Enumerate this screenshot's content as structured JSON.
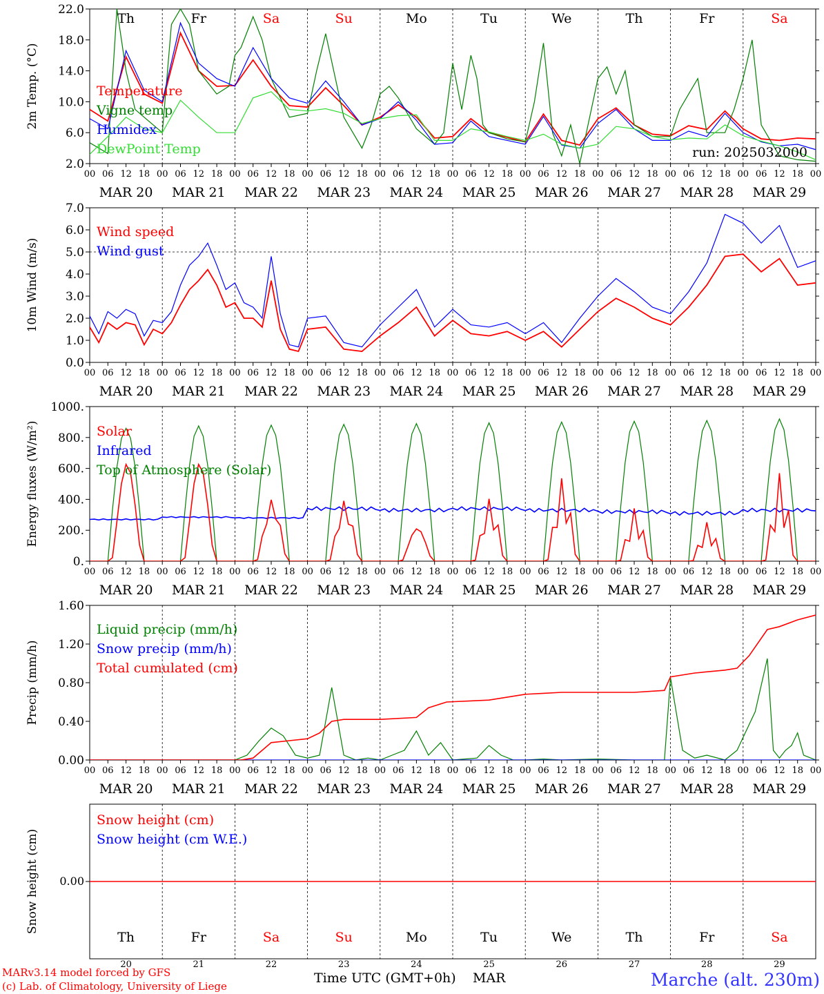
{
  "run_label": "run: 2025032000",
  "model_credit": "MARv3.14 model forced by GFS",
  "lab_credit": "(c) Lab. of Climatology, University of Liege",
  "xaxis_label": "Time UTC (GMT+0h)",
  "month_label": "MAR",
  "site_label": "Marche (alt. 230m)",
  "days": [
    {
      "abbr": "Th",
      "weekend": false,
      "date": "MAR 20",
      "num": "20"
    },
    {
      "abbr": "Fr",
      "weekend": false,
      "date": "MAR 21",
      "num": "21"
    },
    {
      "abbr": "Sa",
      "weekend": true,
      "date": "MAR 22",
      "num": "22"
    },
    {
      "abbr": "Su",
      "weekend": true,
      "date": "MAR 23",
      "num": "23"
    },
    {
      "abbr": "Mo",
      "weekend": false,
      "date": "MAR 24",
      "num": "24"
    },
    {
      "abbr": "Tu",
      "weekend": false,
      "date": "MAR 25",
      "num": "25"
    },
    {
      "abbr": "We",
      "weekend": false,
      "date": "MAR 26",
      "num": "26"
    },
    {
      "abbr": "Th",
      "weekend": false,
      "date": "MAR 27",
      "num": "27"
    },
    {
      "abbr": "Fr",
      "weekend": false,
      "date": "MAR 28",
      "num": "28"
    },
    {
      "abbr": "Sa",
      "weekend": true,
      "date": "MAR 29",
      "num": "29"
    }
  ],
  "hour_ticks": [
    "00",
    "06",
    "12",
    "18"
  ],
  "colors": {
    "red": "#ff0000",
    "green": "#008000",
    "blue": "#0000ff",
    "lightgreen": "#33dd33",
    "weekend": "#ff0000",
    "site": "#3333ff"
  },
  "chart_data": [
    {
      "id": "temperature",
      "type": "line",
      "ylabel": "2m Temp. (°C)",
      "ylim": [
        2,
        22
      ],
      "yticks": [
        "2.0",
        "6.0",
        "10.0",
        "14.0",
        "18.0",
        "22.0"
      ],
      "ytick_values": [
        2,
        6,
        10,
        14,
        18,
        22
      ],
      "x_unit": "hours since MAR 20 00 UTC",
      "series": [
        {
          "name": "Temperature",
          "color": "red",
          "width": 1.8,
          "x": [
            0,
            6,
            12,
            18,
            24,
            30,
            36,
            42,
            48,
            54,
            60,
            66,
            72,
            78,
            84,
            90,
            96,
            102,
            108,
            114,
            120,
            126,
            132,
            138,
            144,
            150,
            156,
            162,
            168,
            174,
            180,
            186,
            192,
            198,
            204,
            210,
            216,
            222,
            228,
            234,
            240
          ],
          "y": [
            9,
            7.5,
            15.8,
            11,
            9.8,
            18.9,
            14,
            12,
            12.1,
            15.4,
            12,
            9.5,
            9.3,
            11.8,
            9.5,
            7,
            8,
            9.6,
            8,
            5.3,
            5.5,
            7.8,
            6,
            5.4,
            4.8,
            8.4,
            5,
            4.4,
            7.8,
            9.2,
            7,
            5.8,
            5.6,
            6.9,
            6.4,
            8.8,
            6.5,
            5.2,
            5,
            5.3,
            5.2
          ]
        },
        {
          "name": "Vigne temp",
          "color": "green",
          "width": 1.2,
          "x": [
            0,
            6,
            9,
            12,
            15,
            18,
            24,
            27,
            30,
            33,
            36,
            42,
            46,
            48,
            50,
            52,
            54,
            57,
            60,
            66,
            72,
            75,
            78,
            84,
            90,
            93,
            96,
            99,
            102,
            108,
            114,
            117,
            120,
            123,
            126,
            128,
            130,
            132,
            138,
            144,
            147,
            150,
            153,
            156,
            159,
            162,
            168,
            171,
            174,
            177,
            180,
            186,
            192,
            195,
            198,
            201,
            204,
            210,
            213,
            216,
            219,
            222,
            228,
            234,
            240
          ],
          "y": [
            4.7,
            3.3,
            22,
            14,
            9,
            8,
            6,
            20,
            22,
            20,
            14,
            11,
            12,
            16,
            17,
            19,
            21,
            18,
            13,
            8,
            8.5,
            14,
            18.8,
            8,
            4,
            7,
            11,
            12,
            10.5,
            6.5,
            4.5,
            6,
            15,
            9,
            16,
            13,
            7,
            6,
            5.2,
            4.8,
            10,
            17.6,
            6,
            3,
            7,
            2,
            13,
            14.5,
            11,
            14,
            7,
            5.5,
            5.5,
            9,
            11,
            13,
            6,
            6,
            9,
            13,
            18,
            7,
            3,
            2.5,
            2.3
          ]
        },
        {
          "name": "Humidex",
          "color": "blue",
          "width": 1.2,
          "x": [
            0,
            6,
            12,
            18,
            24,
            30,
            36,
            42,
            48,
            54,
            60,
            66,
            72,
            78,
            84,
            90,
            96,
            102,
            108,
            114,
            120,
            126,
            132,
            138,
            144,
            150,
            156,
            162,
            168,
            174,
            180,
            186,
            192,
            198,
            204,
            210,
            216,
            222,
            228,
            234,
            240
          ],
          "y": [
            7.8,
            6.5,
            16.6,
            11.5,
            10,
            20.2,
            15,
            13,
            12,
            17,
            13,
            10.5,
            9.8,
            12.7,
            10,
            7,
            7.8,
            10,
            7.6,
            4.5,
            4.7,
            7.5,
            5.5,
            5,
            4.5,
            8.1,
            4.4,
            4,
            7.2,
            9,
            6.5,
            5,
            5,
            6.2,
            5.5,
            8.5,
            6,
            4.8,
            4.3,
            4.5,
            3.8
          ]
        },
        {
          "name": "DewPoint Temp",
          "color": "lightgreen",
          "width": 1.2,
          "x": [
            0,
            6,
            12,
            18,
            24,
            30,
            36,
            42,
            48,
            54,
            60,
            66,
            72,
            78,
            84,
            90,
            96,
            102,
            108,
            114,
            120,
            126,
            132,
            138,
            144,
            150,
            156,
            162,
            168,
            174,
            180,
            186,
            192,
            198,
            204,
            210,
            216,
            222,
            228,
            234,
            240
          ],
          "y": [
            3.2,
            5.5,
            8,
            6.5,
            6,
            10.2,
            8,
            6,
            6,
            10.5,
            11.3,
            9,
            8.8,
            9.1,
            8.5,
            7.2,
            7.8,
            8.2,
            8.3,
            5,
            5,
            6.5,
            6.1,
            5.5,
            5,
            5.8,
            4.5,
            4,
            4.5,
            6.8,
            6.5,
            5.5,
            5.1,
            5.3,
            5.2,
            7,
            5.6,
            4.9,
            4.3,
            3.5,
            2.5
          ]
        }
      ]
    },
    {
      "id": "wind",
      "type": "line",
      "ylabel": "10m Wind (m/s)",
      "ylim": [
        0,
        7
      ],
      "yticks": [
        "0.0",
        "1.0",
        "2.0",
        "3.0",
        "4.0",
        "5.0",
        "6.0",
        "7.0"
      ],
      "ytick_values": [
        0,
        1,
        2,
        3,
        4,
        5,
        6,
        7
      ],
      "reference_line": 5,
      "series": [
        {
          "name": "Wind speed",
          "color": "red",
          "width": 1.8,
          "x": [
            0,
            3,
            6,
            9,
            12,
            15,
            18,
            21,
            24,
            27,
            30,
            33,
            36,
            39,
            42,
            45,
            48,
            51,
            54,
            57,
            60,
            63,
            66,
            69,
            72,
            78,
            84,
            90,
            96,
            102,
            108,
            114,
            120,
            126,
            132,
            138,
            144,
            150,
            156,
            162,
            168,
            174,
            180,
            186,
            192,
            198,
            204,
            210,
            216,
            222,
            228,
            234,
            240
          ],
          "y": [
            1.6,
            0.9,
            1.8,
            1.5,
            1.8,
            1.7,
            0.8,
            1.5,
            1.3,
            1.8,
            2.6,
            3.3,
            3.7,
            4.2,
            3.5,
            2.5,
            2.7,
            2,
            2,
            1.6,
            3.7,
            1.5,
            0.6,
            0.5,
            1.5,
            1.6,
            0.6,
            0.5,
            1.2,
            1.8,
            2.5,
            1.2,
            1.9,
            1.3,
            1.2,
            1.4,
            1.0,
            1.4,
            0.7,
            1.5,
            2.3,
            2.9,
            2.5,
            2.0,
            1.7,
            2.5,
            3.5,
            4.8,
            4.9,
            4.1,
            4.7,
            3.5,
            3.6
          ]
        },
        {
          "name": "Wind gust",
          "color": "blue",
          "width": 1.2,
          "x": [
            0,
            3,
            6,
            9,
            12,
            15,
            18,
            21,
            24,
            27,
            30,
            33,
            36,
            39,
            42,
            45,
            48,
            51,
            54,
            57,
            60,
            63,
            66,
            69,
            72,
            78,
            84,
            90,
            96,
            102,
            108,
            114,
            120,
            126,
            132,
            138,
            144,
            150,
            156,
            162,
            168,
            174,
            180,
            186,
            192,
            198,
            204,
            210,
            216,
            222,
            228,
            234,
            240
          ],
          "y": [
            2.1,
            1.3,
            2.3,
            2,
            2.4,
            2.2,
            1.2,
            1.9,
            1.8,
            2.3,
            3.5,
            4.4,
            4.8,
            5.4,
            4.4,
            3.3,
            3.6,
            2.7,
            2.5,
            2,
            4.8,
            2.2,
            0.8,
            0.7,
            2.0,
            2.1,
            0.9,
            0.7,
            1.7,
            2.5,
            3.3,
            1.6,
            2.4,
            1.7,
            1.6,
            1.8,
            1.3,
            1.8,
            0.9,
            2.0,
            3.0,
            3.8,
            3.2,
            2.5,
            2.2,
            3.2,
            4.5,
            6.7,
            6.3,
            5.4,
            6.2,
            4.3,
            4.6
          ]
        }
      ]
    },
    {
      "id": "energy",
      "type": "line",
      "ylabel": "Energy fluxes (W/m²)",
      "ylim": [
        0,
        1000
      ],
      "yticks": [
        "0.",
        "200.",
        "400.",
        "600.",
        "800.",
        "1000."
      ],
      "ytick_values": [
        0,
        200,
        400,
        600,
        800,
        1000
      ],
      "solar_toa_peaks": [
        860,
        875,
        880,
        885,
        890,
        895,
        900,
        905,
        910,
        920
      ],
      "solar_peaks": [
        630,
        630,
        500,
        470,
        210,
        450,
        580,
        360,
        260,
        580
      ],
      "infrared_level": [
        270,
        285,
        280,
        340,
        330,
        340,
        330,
        320,
        310,
        330
      ],
      "series": [
        {
          "name": "Solar",
          "color": "red",
          "width": 1.6
        },
        {
          "name": "Infrared",
          "color": "blue",
          "width": 1.6
        },
        {
          "name": "Top of Atmosphere (Solar)",
          "color": "green",
          "width": 1.2
        }
      ]
    },
    {
      "id": "precip",
      "type": "line",
      "ylabel": "Precip (mm/h)",
      "ylim": [
        0,
        1.6
      ],
      "yticks": [
        "0.00",
        "0.40",
        "0.80",
        "1.20",
        "1.60"
      ],
      "ytick_values": [
        0,
        0.4,
        0.8,
        1.2,
        1.6
      ],
      "series": [
        {
          "name": "Liquid precip (mm/h)",
          "color": "green",
          "width": 1.2,
          "x": [
            0,
            48,
            52,
            56,
            60,
            64,
            68,
            72,
            76,
            80,
            84,
            88,
            92,
            96,
            100,
            104,
            108,
            112,
            116,
            120,
            128,
            132,
            136,
            140,
            144,
            150,
            156,
            168,
            180,
            190,
            192,
            196,
            200,
            204,
            210,
            214,
            220,
            224,
            226,
            228,
            230,
            232,
            234,
            236,
            240
          ],
          "y": [
            0,
            0,
            0.05,
            0.2,
            0.33,
            0.25,
            0.05,
            0.02,
            0.05,
            0.75,
            0.05,
            0,
            0.02,
            0,
            0.05,
            0.1,
            0.3,
            0.05,
            0.18,
            0,
            0.02,
            0.15,
            0.05,
            0,
            0,
            0.01,
            0,
            0.01,
            0,
            0,
            0.85,
            0.1,
            0.02,
            0.05,
            0,
            0.1,
            0.5,
            1.05,
            0.1,
            0.02,
            0.1,
            0.15,
            0.28,
            0.05,
            0
          ]
        },
        {
          "name": "Snow precip (mm/h)",
          "color": "blue",
          "width": 1.2,
          "x": [
            0,
            240
          ],
          "y": [
            0,
            0
          ]
        },
        {
          "name": "Total cumulated (cm)",
          "color": "red",
          "width": 1.6,
          "x": [
            0,
            50,
            54,
            60,
            66,
            72,
            76,
            80,
            84,
            96,
            108,
            112,
            118,
            132,
            144,
            150,
            156,
            168,
            180,
            190,
            192,
            200,
            210,
            214,
            218,
            224,
            228,
            234,
            240
          ],
          "y": [
            0,
            0,
            0.02,
            0.18,
            0.2,
            0.22,
            0.28,
            0.4,
            0.42,
            0.42,
            0.44,
            0.54,
            0.6,
            0.62,
            0.68,
            0.69,
            0.7,
            0.7,
            0.7,
            0.72,
            0.86,
            0.9,
            0.93,
            0.95,
            1.08,
            1.35,
            1.38,
            1.45,
            1.5
          ]
        }
      ]
    },
    {
      "id": "snow",
      "type": "line",
      "ylabel": "Snow height (cm)",
      "yticks": [
        "0.00"
      ],
      "series": [
        {
          "name": "Snow height (cm)",
          "color": "red",
          "width": 1.6,
          "x": [
            0,
            240
          ],
          "y": [
            0,
            0
          ]
        },
        {
          "name": "Snow height (cm W.E.)",
          "color": "blue",
          "width": 1.2,
          "x": [
            0,
            240
          ],
          "y": [
            0,
            0
          ]
        }
      ]
    }
  ]
}
